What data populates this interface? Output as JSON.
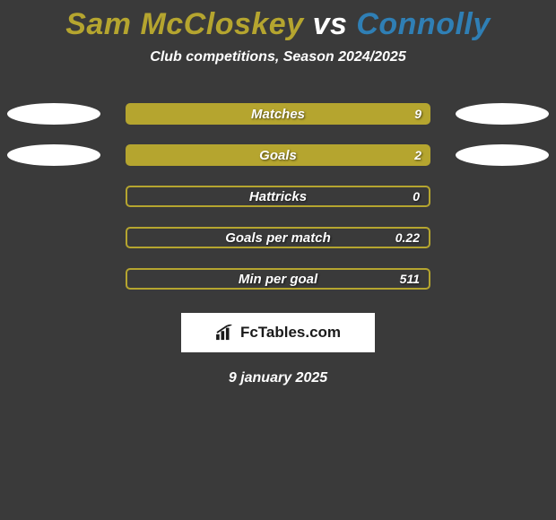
{
  "background_color": "#3a3a3a",
  "title": {
    "player1": {
      "text": "Sam McCloskey",
      "color": "#b5a52f"
    },
    "vs": {
      "text": "vs",
      "color": "#ffffff"
    },
    "player2": {
      "text": "Connolly",
      "color": "#2f7fb5"
    }
  },
  "subtitle": "Club competitions, Season 2024/2025",
  "bar_color": "#b5a52f",
  "ellipse_color": "#ffffff",
  "rows": [
    {
      "label": "Matches",
      "value": "9",
      "style": "solid",
      "left_ellipse": true,
      "right_ellipse": true
    },
    {
      "label": "Goals",
      "value": "2",
      "style": "solid",
      "left_ellipse": true,
      "right_ellipse": true
    },
    {
      "label": "Hattricks",
      "value": "0",
      "style": "outline",
      "left_ellipse": false,
      "right_ellipse": false
    },
    {
      "label": "Goals per match",
      "value": "0.22",
      "style": "outline",
      "left_ellipse": false,
      "right_ellipse": false
    },
    {
      "label": "Min per goal",
      "value": "511",
      "style": "outline",
      "left_ellipse": false,
      "right_ellipse": false
    }
  ],
  "brand": {
    "text": "FcTables.com",
    "background": "#ffffff",
    "text_color": "#1a1a1a"
  },
  "date": "9 january 2025"
}
